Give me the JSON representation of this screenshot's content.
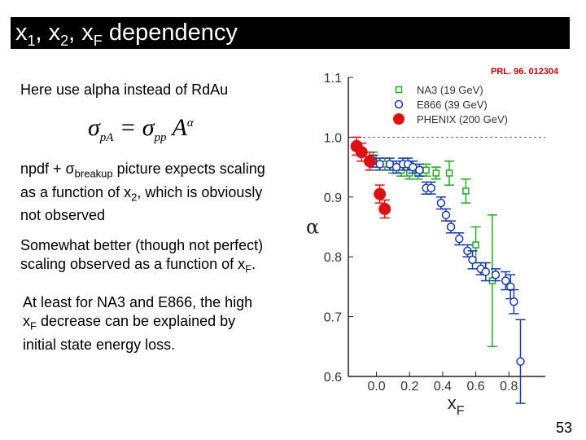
{
  "slide": {
    "title": {
      "pre": "x",
      "s1": "1",
      "m1": ", x",
      "s2": "2",
      "m2": ", x",
      "s3": "F",
      "post": " dependency"
    },
    "line1": "Here use alpha instead of RdAu",
    "formula": {
      "sigma": "σ",
      "sub_pA": "pA",
      "eq": " = ",
      "sub_pp": "pp",
      "A": "A",
      "alpha": "α"
    },
    "para2": {
      "p1": "npdf + ",
      "sig": "σ",
      "sub": "breakup",
      "p2": " picture expects scaling",
      "l2a": "as a function of x",
      "l2sub": "2",
      "l2b": ", which is obviously",
      "l3": "not observed"
    },
    "para3": {
      "l1": "Somewhat better (though not perfect)",
      "l2a": "scaling observed as a function of x",
      "l2sub": "F",
      "l2b": "."
    },
    "para4": {
      "l1": "At least for NA3 and E866, the high",
      "l2a": "x",
      "l2sub": "F",
      "l2b": " decrease can be explained by",
      "l3": "initial state energy loss."
    },
    "citation": "PRL. 96. 012304",
    "page_number": "53"
  },
  "chart_data": {
    "type": "scatter",
    "title": "",
    "xlabel": "x",
    "xlabel_sub": "F",
    "ylabel": "α",
    "xlim": [
      -0.17,
      1.02
    ],
    "ylim": [
      0.6,
      1.1
    ],
    "xticks": [
      0.0,
      0.2,
      0.4,
      0.6,
      0.8
    ],
    "xtick_labels": [
      "0.0",
      "0.2",
      "0.4",
      "0.6",
      "0.8"
    ],
    "yticks": [
      0.6,
      0.7,
      0.8,
      0.9,
      1.0,
      1.1
    ],
    "ytick_labels": [
      "0.6",
      "0.7",
      "0.8",
      "0.9",
      "1.0",
      "1.1"
    ],
    "reference_line": 1.0,
    "legend_position": "top-right",
    "series": [
      {
        "name": "NA3 (19 GeV)",
        "color": "#22aa22",
        "marker": "square",
        "points": [
          [
            -0.02,
            0.965,
            0.01
          ],
          [
            0.05,
            0.955,
            0.01
          ],
          [
            0.1,
            0.95,
            0.01
          ],
          [
            0.15,
            0.945,
            0.01
          ],
          [
            0.2,
            0.94,
            0.01
          ],
          [
            0.25,
            0.94,
            0.01
          ],
          [
            0.3,
            0.945,
            0.01
          ],
          [
            0.36,
            0.94,
            0.01
          ],
          [
            0.44,
            0.94,
            0.02
          ],
          [
            0.54,
            0.91,
            0.02
          ],
          [
            0.6,
            0.82,
            0.03
          ],
          [
            0.7,
            0.76,
            0.11
          ]
        ]
      },
      {
        "name": "E866 (39 GeV)",
        "color": "#1a3aaa",
        "marker": "circle",
        "points": [
          [
            -0.02,
            0.96,
            0.01
          ],
          [
            0.02,
            0.955,
            0.01
          ],
          [
            0.08,
            0.955,
            0.01
          ],
          [
            0.12,
            0.95,
            0.01
          ],
          [
            0.16,
            0.955,
            0.01
          ],
          [
            0.19,
            0.955,
            0.01
          ],
          [
            0.22,
            0.95,
            0.01
          ],
          [
            0.26,
            0.945,
            0.01
          ],
          [
            0.3,
            0.915,
            0.01
          ],
          [
            0.33,
            0.915,
            0.01
          ],
          [
            0.39,
            0.89,
            0.01
          ],
          [
            0.42,
            0.87,
            0.01
          ],
          [
            0.45,
            0.85,
            0.01
          ],
          [
            0.5,
            0.83,
            0.01
          ],
          [
            0.55,
            0.81,
            0.01
          ],
          [
            0.58,
            0.795,
            0.015
          ],
          [
            0.63,
            0.78,
            0.01
          ],
          [
            0.66,
            0.775,
            0.015
          ],
          [
            0.72,
            0.77,
            0.01
          ],
          [
            0.78,
            0.76,
            0.015
          ],
          [
            0.81,
            0.75,
            0.02
          ],
          [
            0.83,
            0.725,
            0.02
          ],
          [
            0.87,
            0.625,
            0.07
          ]
        ]
      },
      {
        "name": "PHENIX (200 GeV)",
        "color": "#dd1111",
        "marker": "circle-filled",
        "points": [
          [
            -0.12,
            0.985,
            0.015
          ],
          [
            -0.09,
            0.975,
            0.015
          ],
          [
            -0.04,
            0.96,
            0.015
          ],
          [
            0.02,
            0.905,
            0.015
          ],
          [
            0.05,
            0.88,
            0.015
          ]
        ]
      }
    ]
  }
}
